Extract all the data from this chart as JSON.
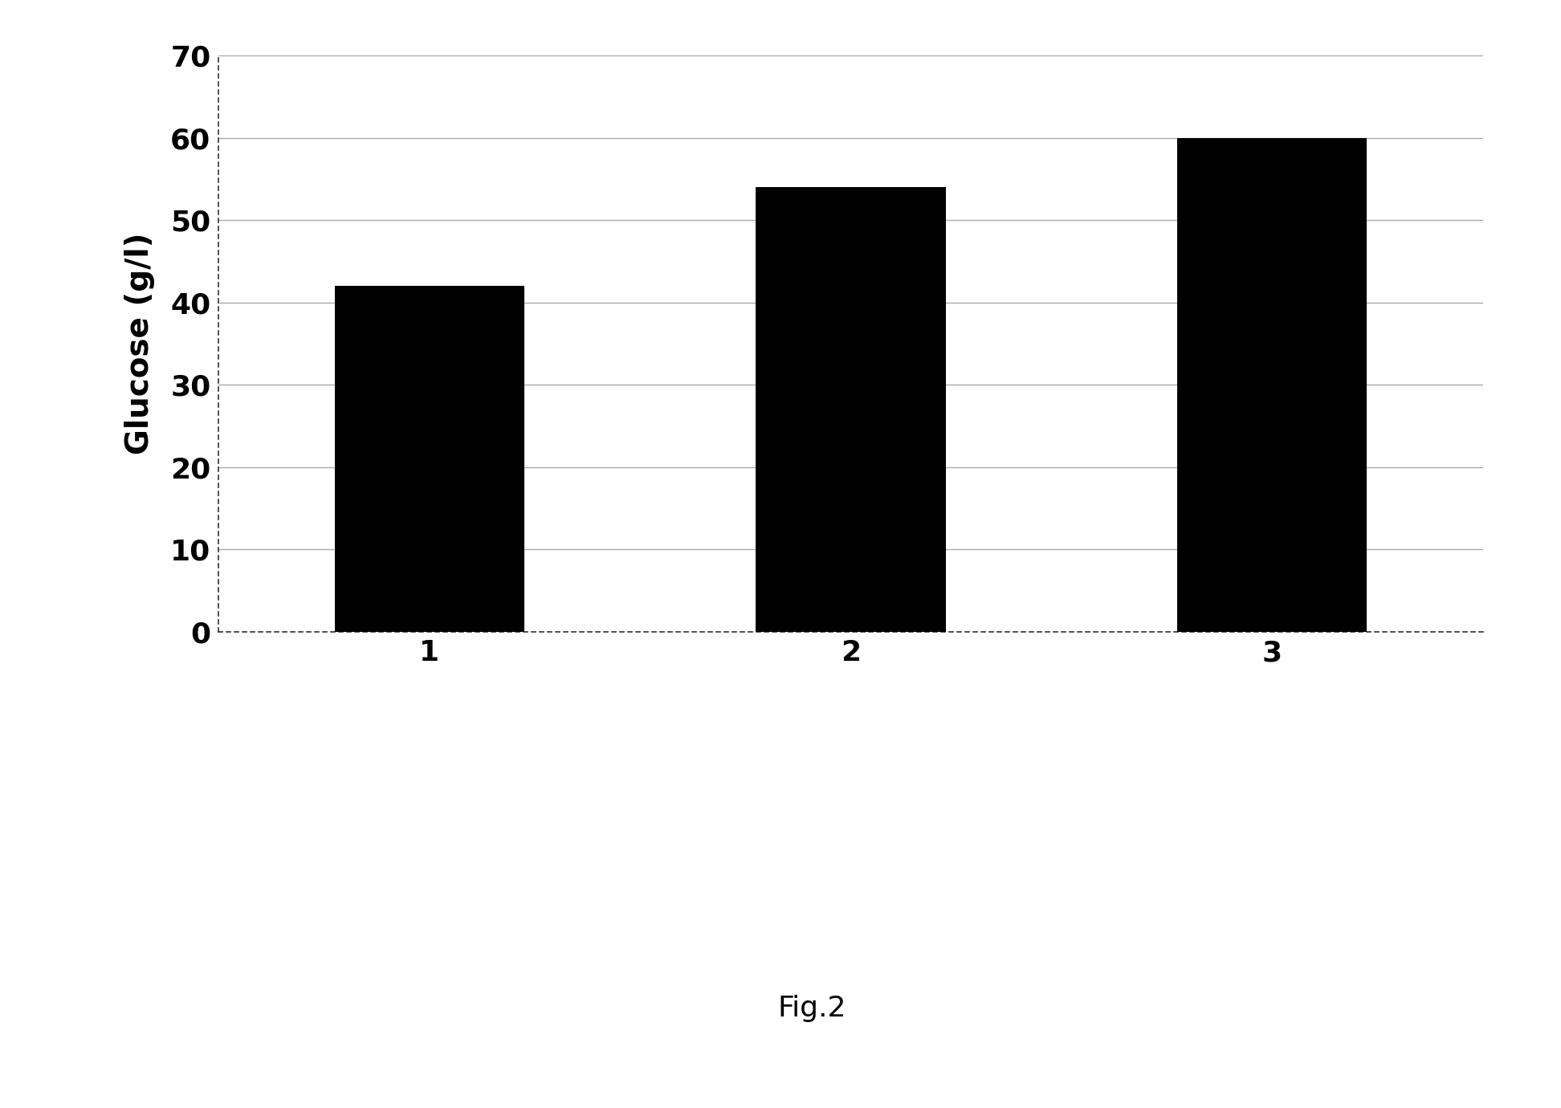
{
  "categories": [
    "1",
    "2",
    "3"
  ],
  "values": [
    42,
    54,
    60
  ],
  "bar_color": "#000000",
  "ylabel": "Glucose (g/l)",
  "ylim": [
    0,
    70
  ],
  "yticks": [
    0,
    10,
    20,
    30,
    40,
    50,
    60,
    70
  ],
  "caption": "Fig.2",
  "background_color": "#ffffff",
  "bar_width": 0.45,
  "grid_color": "#aaaaaa",
  "figsize": [
    19.44,
    13.8
  ],
  "tick_fontsize": 26,
  "ylabel_fontsize": 28,
  "caption_fontsize": 26
}
